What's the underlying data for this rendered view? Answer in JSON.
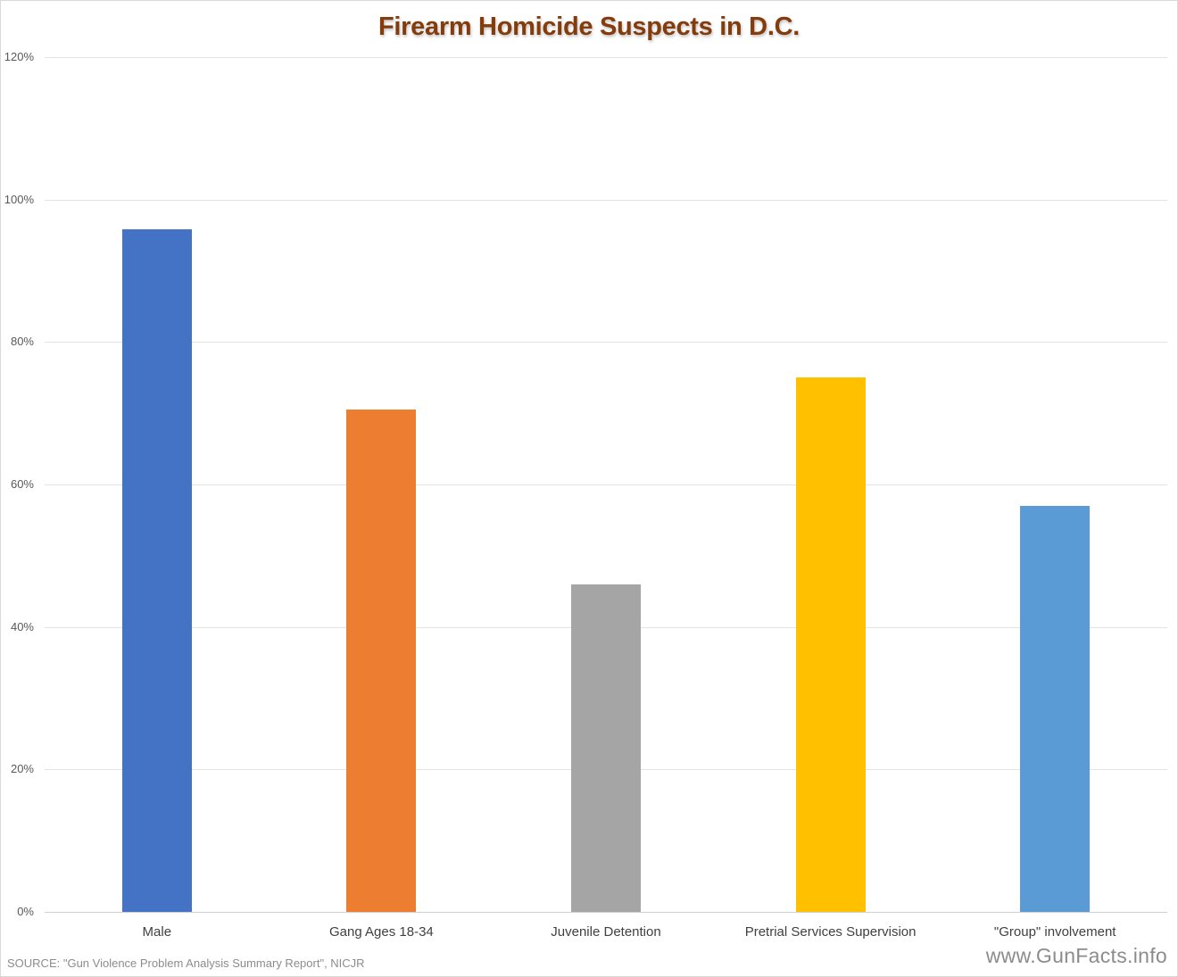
{
  "chart_data": {
    "type": "bar",
    "title": "Firearm Homicide Suspects in D.C.",
    "categories": [
      "Male",
      "Gang Ages 18-34",
      "Juvenile Detention",
      "Pretrial Services Supervision",
      "\"Group\" involvement"
    ],
    "values": [
      95.8,
      70.5,
      46.0,
      75.0,
      57.0
    ],
    "value_unit": "%",
    "colors": [
      "#4472c4",
      "#ed7d31",
      "#a5a5a5",
      "#ffc000",
      "#5b9bd5"
    ],
    "xlabel": "",
    "ylabel": "",
    "ylim": [
      0,
      120
    ],
    "yticks": [
      "0%",
      "20%",
      "40%",
      "60%",
      "80%",
      "100%",
      "120%"
    ],
    "grid": true,
    "legend": "none"
  },
  "footer": {
    "source": "SOURCE: \"Gun Violence Problem Analysis Summary Report\", NICJR",
    "watermark": "www.GunFacts.info"
  }
}
